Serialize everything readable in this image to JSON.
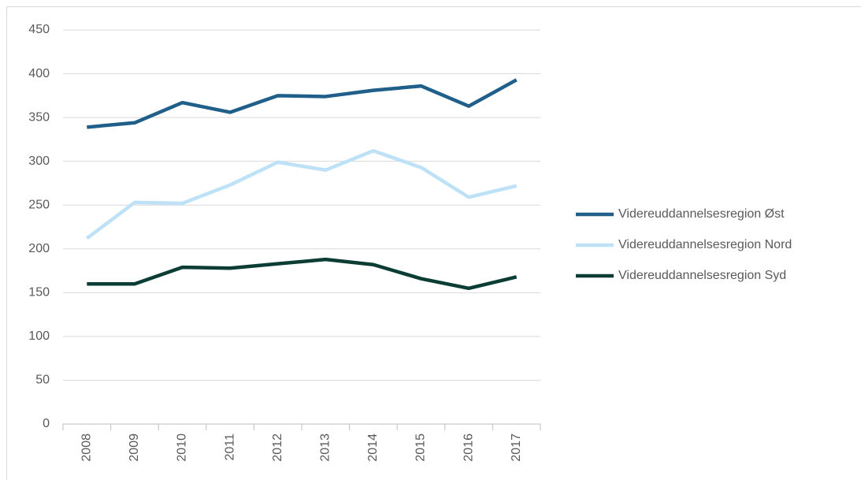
{
  "chart_data": {
    "type": "line",
    "categories": [
      "2008",
      "2009",
      "2010",
      "2011",
      "2012",
      "2013",
      "2014",
      "2015",
      "2016",
      "2017"
    ],
    "series": [
      {
        "name": "Videreuddannelsesregion Øst",
        "color": "#1f5f8a",
        "values": [
          339,
          344,
          367,
          356,
          375,
          374,
          381,
          386,
          363,
          393
        ]
      },
      {
        "name": "Videreuddannelsesregion Nord",
        "color": "#bde1f7",
        "values": [
          212,
          253,
          252,
          273,
          299,
          290,
          312,
          293,
          259,
          272
        ]
      },
      {
        "name": "Videreuddannelsesregion Syd",
        "color": "#0b3d35",
        "values": [
          160,
          160,
          179,
          178,
          183,
          188,
          182,
          166,
          155,
          168
        ]
      }
    ],
    "ylim": [
      0,
      450
    ],
    "yticks": [
      0,
      50,
      100,
      150,
      200,
      250,
      300,
      350,
      400,
      450
    ],
    "grid": true,
    "legend": "right"
  }
}
